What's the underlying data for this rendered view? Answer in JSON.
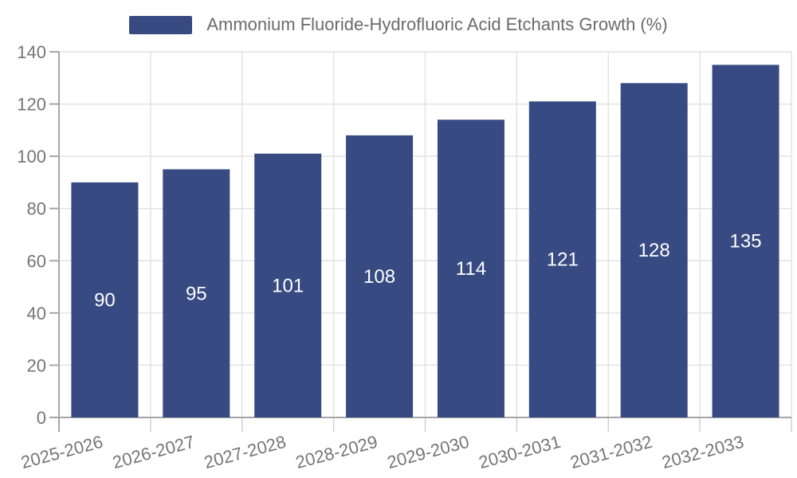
{
  "legend": {
    "label": "Ammonium Fluoride-Hydrofluoric Acid Etchants Growth (%)"
  },
  "chart_data": {
    "type": "bar",
    "title": "Ammonium Fluoride-Hydrofluoric Acid Etchants Growth (%)",
    "categories": [
      "2025-2026",
      "2026-2027",
      "2027-2028",
      "2028-2029",
      "2029-2030",
      "2030-2031",
      "2031-2032",
      "2032-2033"
    ],
    "values": [
      90,
      95,
      101,
      108,
      114,
      121,
      128,
      135
    ],
    "xlabel": "",
    "ylabel": "",
    "ylim": [
      0,
      140
    ],
    "ytick_step": 20,
    "yticks": [
      0,
      20,
      40,
      60,
      80,
      100,
      120,
      140
    ],
    "grid": true,
    "legend_position": "top",
    "value_labels": "inside-center",
    "bar_color": "#374a82",
    "value_label_color": "#ffffff",
    "grid_color": "#e3e3e3",
    "axis_color": "#a6a6a6",
    "x_tick_color": "#d0d0d0",
    "tick_label_color": "#757575",
    "legend_text_color": "#6b6b6b",
    "background_color": "#ffffff"
  }
}
